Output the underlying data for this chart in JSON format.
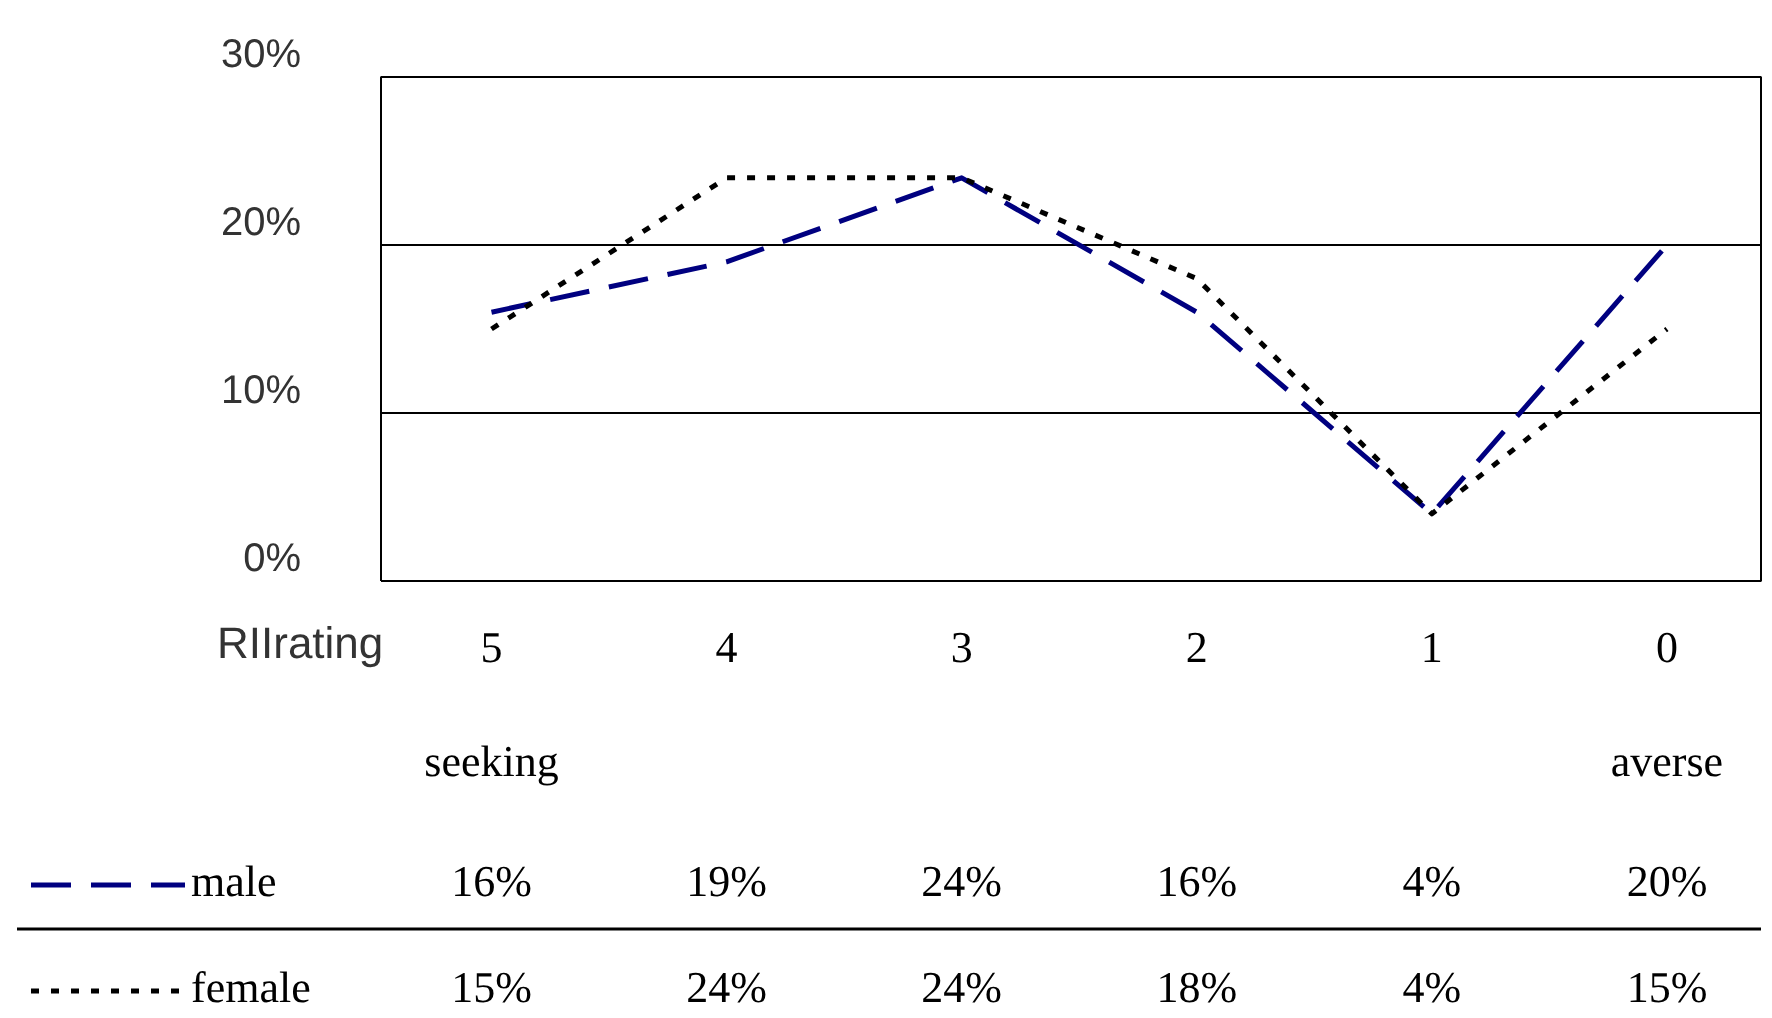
{
  "chart_data": {
    "type": "line",
    "xlabel": "RIIrating",
    "categories": [
      "5",
      "4",
      "3",
      "2",
      "1",
      "0"
    ],
    "series": [
      {
        "name": "male",
        "color": "#000080",
        "line_style": "dashed",
        "values": [
          16,
          19,
          24,
          16,
          4,
          20
        ],
        "value_labels": [
          "16%",
          "19%",
          "24%",
          "16%",
          "4%",
          "20%"
        ]
      },
      {
        "name": "female",
        "color": "#000000",
        "line_style": "dotted",
        "values": [
          15,
          24,
          24,
          18,
          4,
          15
        ],
        "value_labels": [
          "15%",
          "24%",
          "24%",
          "18%",
          "4%",
          "15%"
        ]
      }
    ],
    "ylim": [
      0,
      30
    ],
    "yticks": [
      {
        "value": 0,
        "label": "0%"
      },
      {
        "value": 10,
        "label": "10%"
      },
      {
        "value": 20,
        "label": "20%"
      },
      {
        "value": 30,
        "label": "30%"
      }
    ],
    "grid": "y",
    "legend": "bottom",
    "marker": "none",
    "annotations": [
      "seeking",
      "averse"
    ]
  }
}
